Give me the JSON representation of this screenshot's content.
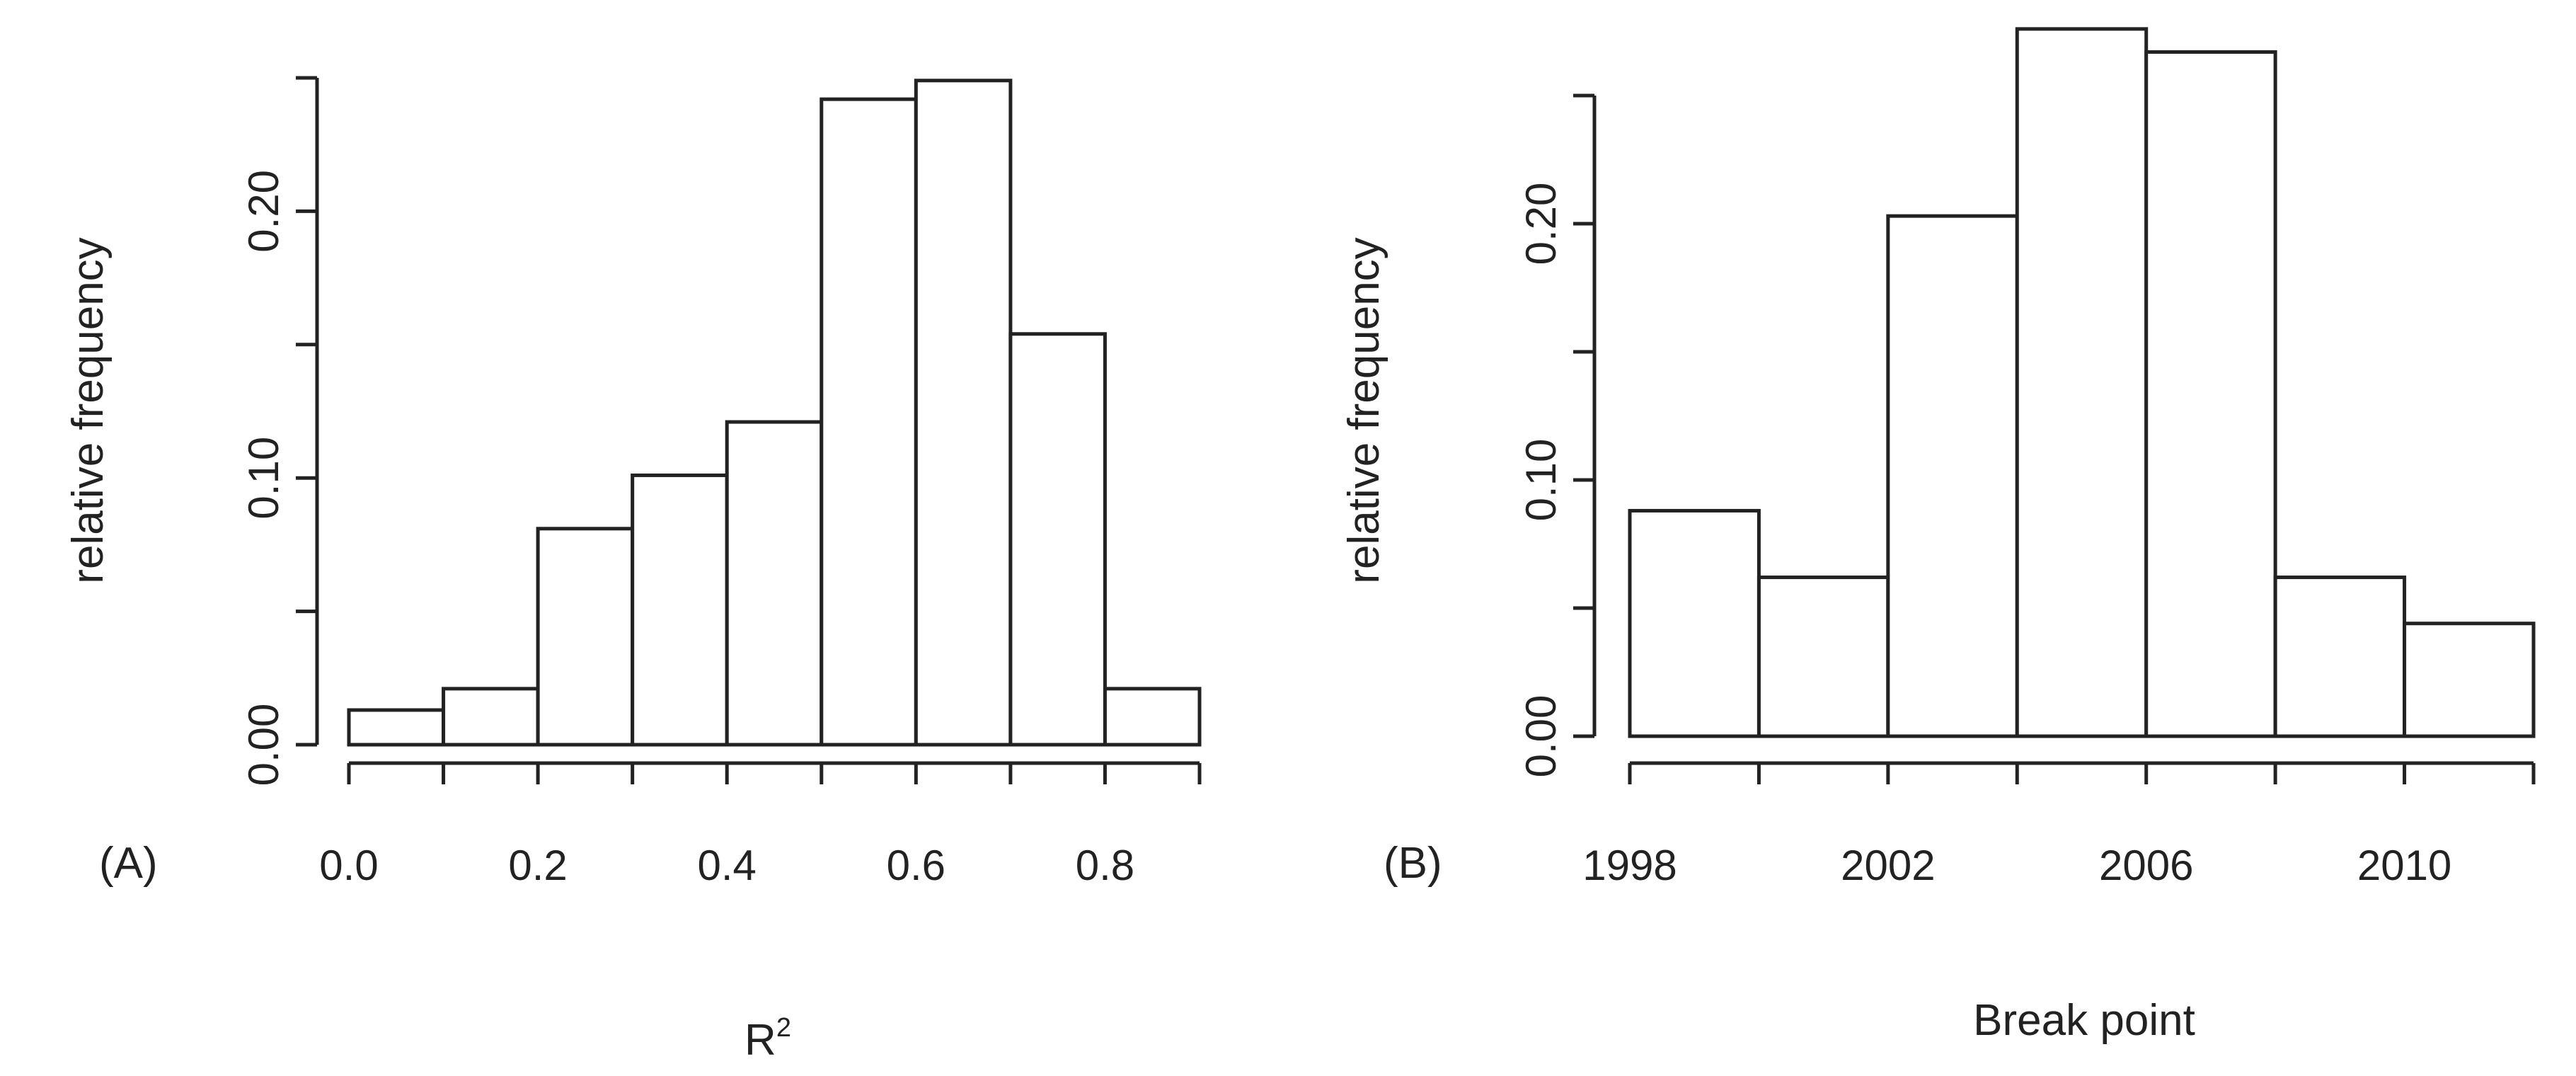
{
  "chart_data": [
    {
      "type": "bar",
      "panel_label": "(A)",
      "xlabel": "R",
      "xlabel_superscript": "2",
      "ylabel": "relative frequency",
      "bin_edges": [
        0.0,
        0.1,
        0.2,
        0.3,
        0.4,
        0.5,
        0.6,
        0.7,
        0.8,
        0.9
      ],
      "values": [
        0.013,
        0.021,
        0.081,
        0.101,
        0.121,
        0.242,
        0.249,
        0.154,
        0.021
      ],
      "xlim": [
        0.0,
        0.9
      ],
      "ylim": [
        0.0,
        0.25
      ],
      "x_ticks": [
        0.0,
        0.1,
        0.2,
        0.3,
        0.4,
        0.5,
        0.6,
        0.7,
        0.8,
        0.9
      ],
      "x_tick_labels": [
        {
          "value": 0.0,
          "label": "0.0"
        },
        {
          "value": 0.2,
          "label": "0.2"
        },
        {
          "value": 0.4,
          "label": "0.4"
        },
        {
          "value": 0.6,
          "label": "0.6"
        },
        {
          "value": 0.8,
          "label": "0.8"
        }
      ],
      "y_ticks": [
        0.0,
        0.05,
        0.1,
        0.15,
        0.2,
        0.25
      ],
      "y_tick_labels": [
        {
          "value": 0.0,
          "label": "0.00"
        },
        {
          "value": 0.1,
          "label": "0.10"
        },
        {
          "value": 0.2,
          "label": "0.20"
        }
      ],
      "grid": false,
      "legend": "none"
    },
    {
      "type": "bar",
      "panel_label": "(B)",
      "xlabel": "Break point",
      "xlabel_superscript": "",
      "ylabel": "relative frequency",
      "bin_edges": [
        1998,
        2000,
        2002,
        2004,
        2006,
        2008,
        2010,
        2012
      ],
      "values": [
        0.088,
        0.062,
        0.203,
        0.276,
        0.267,
        0.062,
        0.044
      ],
      "xlim": [
        1998,
        2012
      ],
      "ylim": [
        0.0,
        0.25
      ],
      "x_ticks": [
        1998,
        2000,
        2002,
        2004,
        2006,
        2008,
        2010,
        2012
      ],
      "x_tick_labels": [
        {
          "value": 1998,
          "label": "1998"
        },
        {
          "value": 2002,
          "label": "2002"
        },
        {
          "value": 2006,
          "label": "2006"
        },
        {
          "value": 2010,
          "label": "2010"
        }
      ],
      "y_ticks": [
        0.0,
        0.05,
        0.1,
        0.15,
        0.2,
        0.25
      ],
      "y_tick_labels": [
        {
          "value": 0.0,
          "label": "0.00"
        },
        {
          "value": 0.1,
          "label": "0.10"
        },
        {
          "value": 0.2,
          "label": "0.20"
        }
      ],
      "grid": false,
      "legend": "none"
    }
  ]
}
